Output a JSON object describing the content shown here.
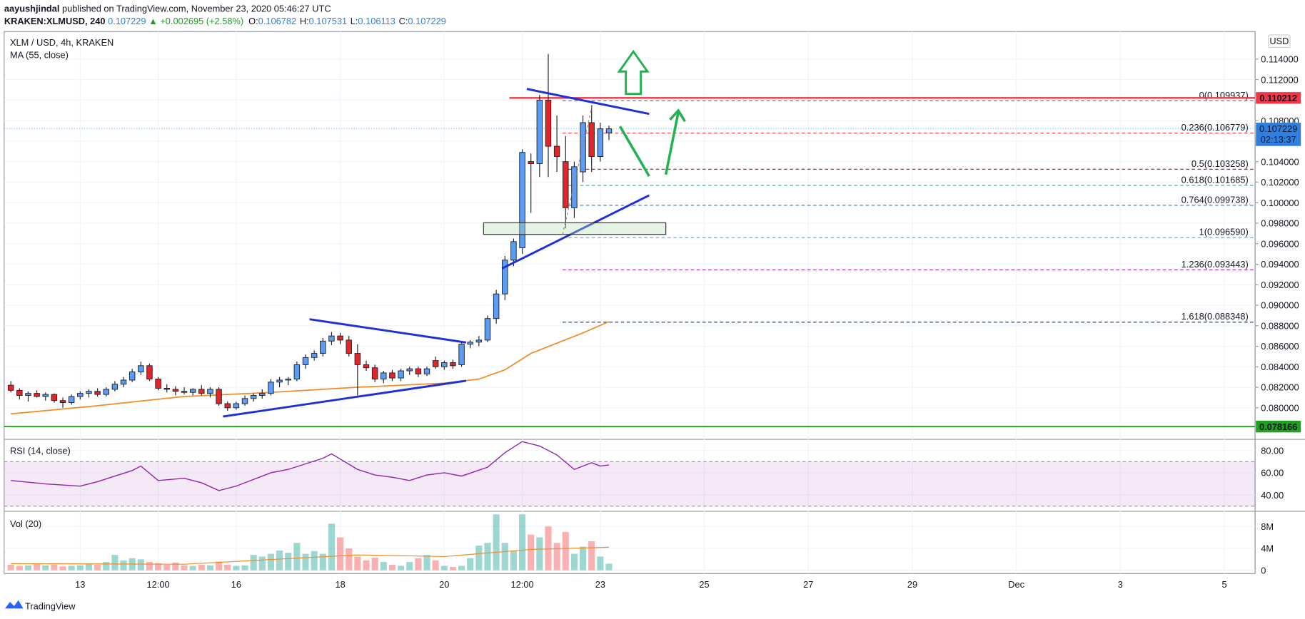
{
  "header": {
    "author": "aayushjindal",
    "published": "published on TradingView.com, November 23, 2020 05:46:27 UTC",
    "symbol": "KRAKEN:XLMUSD, 240",
    "last": "0.107229",
    "change": "▲ +0.002695 (+2.58%)",
    "ohlc": [
      {
        "key": "O:",
        "value": "0.106782"
      },
      {
        "key": "H:",
        "value": "0.107531"
      },
      {
        "key": "L:",
        "value": "0.106113"
      },
      {
        "key": "C:",
        "value": "0.107229"
      }
    ]
  },
  "currency": "USD",
  "footer": "TradingView",
  "chart_data": {
    "type": "candlestick",
    "title": "XLM / USD, 4h, KRAKEN",
    "up_color": "#5b9cf6",
    "down_color": "#e3242b",
    "xlim": [
      -0.77,
      143.54
    ],
    "ylim": [
      0.07692,
      0.11668
    ],
    "xticks": [
      {
        "value": 8,
        "label": "13"
      },
      {
        "value": 17,
        "label": "12:00"
      },
      {
        "value": 26,
        "label": "16"
      },
      {
        "value": 38,
        "label": "18"
      },
      {
        "value": 50,
        "label": "20"
      },
      {
        "value": 59,
        "label": "12:00"
      },
      {
        "value": 68,
        "label": "23"
      },
      {
        "value": 80,
        "label": "25"
      },
      {
        "value": 92,
        "label": "27"
      },
      {
        "value": 104,
        "label": "29"
      },
      {
        "value": 116,
        "label": "Dec"
      },
      {
        "value": 128,
        "label": "3"
      },
      {
        "value": 140,
        "label": "5"
      }
    ],
    "yticks": [
      {
        "value": 0.08,
        "label": "0.080000"
      },
      {
        "value": 0.082,
        "label": "0.082000"
      },
      {
        "value": 0.084,
        "label": "0.084000"
      },
      {
        "value": 0.086,
        "label": "0.086000"
      },
      {
        "value": 0.088,
        "label": "0.088000"
      },
      {
        "value": 0.09,
        "label": "0.090000"
      },
      {
        "value": 0.092,
        "label": "0.092000"
      },
      {
        "value": 0.094,
        "label": "0.094000"
      },
      {
        "value": 0.096,
        "label": "0.096000"
      },
      {
        "value": 0.098,
        "label": "0.098000"
      },
      {
        "value": 0.1,
        "label": "0.100000"
      },
      {
        "value": 0.102,
        "label": "0.102000"
      },
      {
        "value": 0.104,
        "label": "0.104000"
      },
      {
        "value": 0.106,
        "label": "0.106000"
      },
      {
        "value": 0.108,
        "label": "0.108000"
      },
      {
        "value": 0.11,
        "label": "0.110000"
      },
      {
        "value": 0.112,
        "label": "0.112000"
      },
      {
        "value": 0.114,
        "label": "0.114000"
      }
    ],
    "grid": true,
    "ohlc": [
      [
        0.0822,
        0.0826,
        0.0815,
        0.0817
      ],
      [
        0.0817,
        0.0819,
        0.0808,
        0.0812
      ],
      [
        0.0812,
        0.0816,
        0.0806,
        0.0814
      ],
      [
        0.0814,
        0.0817,
        0.081,
        0.0811
      ],
      [
        0.0811,
        0.0815,
        0.0807,
        0.0813
      ],
      [
        0.0813,
        0.0814,
        0.0805,
        0.0807
      ],
      [
        0.0807,
        0.081,
        0.08,
        0.0805
      ],
      [
        0.0805,
        0.0813,
        0.0803,
        0.0811
      ],
      [
        0.0811,
        0.0816,
        0.0808,
        0.0814
      ],
      [
        0.0814,
        0.0818,
        0.081,
        0.0816
      ],
      [
        0.0816,
        0.0819,
        0.0811,
        0.0813
      ],
      [
        0.0813,
        0.082,
        0.0811,
        0.0818
      ],
      [
        0.0818,
        0.0826,
        0.0816,
        0.0823
      ],
      [
        0.0823,
        0.083,
        0.082,
        0.0827
      ],
      [
        0.0827,
        0.0838,
        0.0825,
        0.0835
      ],
      [
        0.0835,
        0.0845,
        0.0832,
        0.0841
      ],
      [
        0.0841,
        0.0843,
        0.0826,
        0.0828
      ],
      [
        0.0828,
        0.083,
        0.0817,
        0.0819
      ],
      [
        0.0819,
        0.0823,
        0.0815,
        0.0818
      ],
      [
        0.0818,
        0.0821,
        0.0812,
        0.0816
      ],
      [
        0.0816,
        0.082,
        0.0813,
        0.0815
      ],
      [
        0.0815,
        0.0819,
        0.0812,
        0.0818
      ],
      [
        0.0818,
        0.0822,
        0.0812,
        0.0814
      ],
      [
        0.0814,
        0.082,
        0.081,
        0.0818
      ],
      [
        0.0818,
        0.082,
        0.0802,
        0.0804
      ],
      [
        0.0804,
        0.0806,
        0.0797,
        0.08
      ],
      [
        0.08,
        0.0806,
        0.0798,
        0.0804
      ],
      [
        0.0804,
        0.0812,
        0.0802,
        0.0809
      ],
      [
        0.0809,
        0.0814,
        0.0806,
        0.0812
      ],
      [
        0.0812,
        0.0818,
        0.0809,
        0.0814
      ],
      [
        0.0814,
        0.0828,
        0.0812,
        0.0825
      ],
      [
        0.0825,
        0.083,
        0.082,
        0.0827
      ],
      [
        0.0827,
        0.083,
        0.0822,
        0.0828
      ],
      [
        0.0828,
        0.0845,
        0.0826,
        0.0842
      ],
      [
        0.0842,
        0.0852,
        0.0838,
        0.0849
      ],
      [
        0.0849,
        0.0856,
        0.0846,
        0.0853
      ],
      [
        0.0853,
        0.0868,
        0.085,
        0.0865
      ],
      [
        0.0865,
        0.0874,
        0.0861,
        0.087
      ],
      [
        0.087,
        0.0873,
        0.0862,
        0.0866
      ],
      [
        0.0866,
        0.087,
        0.085,
        0.0853
      ],
      [
        0.0853,
        0.0862,
        0.0812,
        0.0842
      ],
      [
        0.0842,
        0.0846,
        0.0836,
        0.0839
      ],
      [
        0.0839,
        0.0842,
        0.0825,
        0.0828
      ],
      [
        0.0828,
        0.0836,
        0.0824,
        0.0834
      ],
      [
        0.0834,
        0.0837,
        0.0826,
        0.0829
      ],
      [
        0.0829,
        0.0838,
        0.0826,
        0.0836
      ],
      [
        0.0836,
        0.084,
        0.0832,
        0.0838
      ],
      [
        0.0838,
        0.084,
        0.083,
        0.0833
      ],
      [
        0.0833,
        0.084,
        0.0831,
        0.0838
      ],
      [
        0.0846,
        0.085,
        0.0838,
        0.084
      ],
      [
        0.084,
        0.0846,
        0.0837,
        0.0844
      ],
      [
        0.0844,
        0.0847,
        0.0838,
        0.0841
      ],
      [
        0.0842,
        0.0864,
        0.084,
        0.0862
      ],
      [
        0.0862,
        0.0866,
        0.0858,
        0.0864
      ],
      [
        0.0864,
        0.087,
        0.086,
        0.0866
      ],
      [
        0.0866,
        0.089,
        0.0864,
        0.0887
      ],
      [
        0.0887,
        0.0915,
        0.0882,
        0.0911
      ],
      [
        0.0911,
        0.0948,
        0.0905,
        0.0944
      ],
      [
        0.0944,
        0.0965,
        0.0938,
        0.0962
      ],
      [
        0.0956,
        0.1052,
        0.095,
        0.1049
      ],
      [
        0.104,
        0.1048,
        0.099,
        0.1038
      ],
      [
        0.1038,
        0.1105,
        0.1025,
        0.11
      ],
      [
        0.11,
        0.1145,
        0.1025,
        0.1055
      ],
      [
        0.1055,
        0.1085,
        0.103,
        0.1045
      ],
      [
        0.104,
        0.1065,
        0.0975,
        0.0995
      ],
      [
        0.0995,
        0.104,
        0.0985,
        0.1035
      ],
      [
        0.103,
        0.1085,
        0.102,
        0.1078
      ],
      [
        0.1078,
        0.1095,
        0.103,
        0.1045
      ],
      [
        0.1045,
        0.1078,
        0.104,
        0.1072
      ],
      [
        0.1068,
        0.1075,
        0.1061,
        0.1072
      ]
    ],
    "ma": {
      "name": "MA (55, close)",
      "color": "#f08c28",
      "x": [
        0,
        10,
        20,
        30,
        40,
        50,
        54,
        57,
        60,
        63,
        66,
        69
      ],
      "values": [
        0.0794,
        0.0802,
        0.0811,
        0.0815,
        0.082,
        0.0824,
        0.0828,
        0.0837,
        0.0853,
        0.0863,
        0.0873,
        0.0884
      ]
    },
    "fib": [
      {
        "value": 0.109937,
        "label": "0(0.109937)",
        "color": "#787b86"
      },
      {
        "value": 0.106779,
        "label": "0.236(0.106779)",
        "color": "#f23645"
      },
      {
        "value": 0.103258,
        "label": "0.5(0.103258)",
        "color": "#9b1b30"
      },
      {
        "value": 0.101685,
        "label": "0.618(0.101685)",
        "color": "#22ab94"
      },
      {
        "value": 0.099738,
        "label": "0.764(0.099738)",
        "color": "#3179c0"
      },
      {
        "value": 0.09659,
        "label": "1(0.096590)",
        "color": "#4ba8e0"
      },
      {
        "value": 0.093443,
        "label": "1.236(0.093443)",
        "color": "#a020b0"
      },
      {
        "value": 0.088348,
        "label": "1.618(0.088348)",
        "color": "#1848a0"
      }
    ],
    "price_lines": [
      {
        "value": 0.110212,
        "color": "#f23645"
      },
      {
        "value": 0.078166,
        "color": "#1ea01e"
      }
    ],
    "last": {
      "value": 0.107229,
      "countdown": "02:13:37",
      "color": "#2f7fe0"
    },
    "rsi": {
      "name": "RSI (14, close)",
      "color": "#8e24aa",
      "ylim": [
        25.4,
        90
      ],
      "yticks": [
        {
          "value": 80,
          "label": "80.00"
        },
        {
          "value": 60,
          "label": "60.00"
        },
        {
          "value": 40,
          "label": "40.00"
        }
      ],
      "band": [
        30,
        70
      ],
      "x": [
        0,
        4,
        8,
        10,
        14,
        15,
        17,
        20,
        22,
        24,
        26,
        30,
        32,
        36,
        37,
        40,
        42,
        44,
        46,
        48,
        50,
        52,
        55,
        57,
        59,
        61,
        63,
        65,
        67,
        68,
        69
      ],
      "values": [
        53,
        50,
        48,
        52,
        62,
        66,
        53,
        55,
        51,
        44,
        48,
        60,
        63,
        73,
        77,
        63,
        58,
        56,
        53,
        58,
        60,
        57,
        65,
        78,
        88,
        84,
        76,
        63,
        69,
        66,
        67
      ]
    },
    "volume": {
      "name": "Vol (20)",
      "ylim": [
        -615000,
        10770000
      ],
      "yticks": [
        {
          "value": 8000000,
          "label": "8M"
        },
        {
          "value": 4000000,
          "label": "4M"
        },
        0
      ],
      "values": [
        1000000,
        800000,
        900000,
        1100000,
        900000,
        1000000,
        700000,
        800000,
        900000,
        1200000,
        1000000,
        1500000,
        2800000,
        1800000,
        2200000,
        2000000,
        1500000,
        1300000,
        1000000,
        1400000,
        900000,
        800000,
        1000000,
        900000,
        1600000,
        1000000,
        800000,
        900000,
        2800000,
        2500000,
        3000000,
        3600000,
        3200000,
        5000000,
        3000000,
        3500000,
        3000000,
        8500000,
        6000000,
        4000000,
        2500000,
        1800000,
        2300000,
        1500000,
        1000000,
        800000,
        1500000,
        2200000,
        2800000,
        1800000,
        800000,
        600000,
        800000,
        2200000,
        4500000,
        5000000,
        10200000,
        5000000,
        3500000,
        10200000,
        6500000,
        6000000,
        8000000,
        5000000,
        7000000,
        3000000,
        4300000,
        5300000,
        2500000,
        1200000
      ],
      "ma": {
        "color": "#f08c28",
        "x": [
          0,
          20,
          40,
          50,
          60,
          69
        ],
        "values": [
          1200000,
          1100000,
          2800000,
          2500000,
          3800000,
          4200000
        ]
      }
    }
  }
}
